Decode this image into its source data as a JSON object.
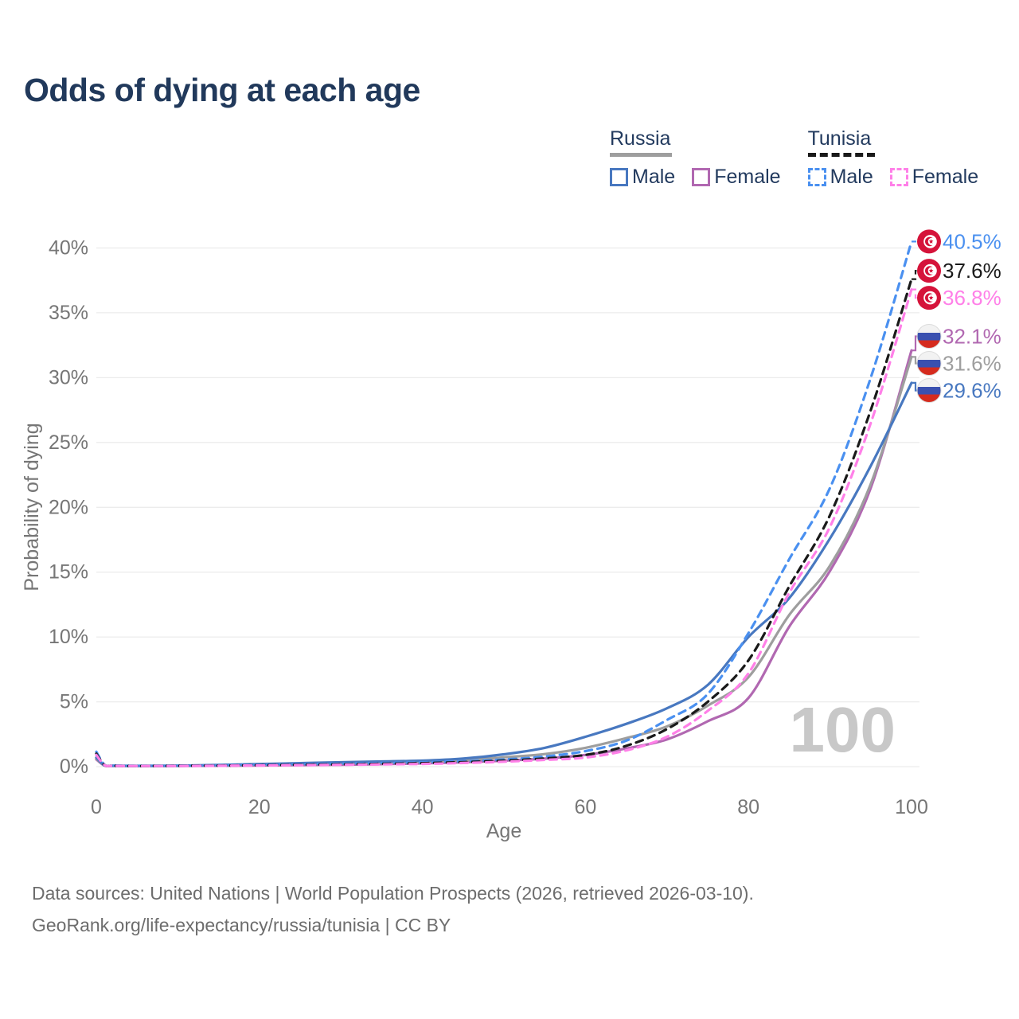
{
  "title": "Odds of dying at each age",
  "legend": {
    "groups": [
      {
        "country": "Russia",
        "style": "solid",
        "rule_color": "#9e9e9e",
        "items": [
          {
            "label": "Male",
            "color": "#4878c0"
          },
          {
            "label": "Female",
            "color": "#b168b1"
          }
        ]
      },
      {
        "country": "Tunisia",
        "style": "dashed",
        "rule_color": "#1a1a1a",
        "items": [
          {
            "label": "Male",
            "color": "#4a90f0"
          },
          {
            "label": "Female",
            "color": "#ff80e8"
          }
        ]
      }
    ]
  },
  "watermark_age": "100",
  "flags": {
    "tunisia_red": "#d5133a",
    "russia_white": "#f2f2f2",
    "russia_blue": "#3a50b0",
    "russia_red": "#d52b1e"
  },
  "footer": {
    "line1": "Data sources: United Nations | World Population Prospects (2026, retrieved 2026-03-10).",
    "line2": "GeoRank.org/life-expectancy/russia/tunisia | CC BY"
  },
  "chart_data": {
    "type": "line",
    "title": "Odds of dying at each age",
    "xlabel": "Age",
    "ylabel": "Probability of dying",
    "xlim": [
      0,
      100
    ],
    "ylim": [
      0,
      40
    ],
    "x_ticks": [
      0,
      20,
      40,
      60,
      80,
      100
    ],
    "y_ticks": [
      0,
      5,
      10,
      15,
      20,
      25,
      30,
      35,
      40
    ],
    "y_tick_suffix": "%",
    "grid": "horizontal",
    "legend_position": "top-right",
    "x": [
      0,
      1,
      2,
      5,
      10,
      15,
      20,
      25,
      30,
      35,
      40,
      45,
      50,
      55,
      60,
      65,
      70,
      75,
      80,
      85,
      90,
      95,
      100
    ],
    "series": [
      {
        "name": "Tunisia Male",
        "country": "Tunisia",
        "sex": "male",
        "color": "#4a90f0",
        "dash": "dashed",
        "flag": "tn",
        "end_label": "40.5%",
        "values": [
          1.15,
          0.15,
          0.08,
          0.06,
          0.07,
          0.1,
          0.14,
          0.18,
          0.23,
          0.28,
          0.33,
          0.42,
          0.55,
          0.78,
          1.2,
          2.0,
          3.6,
          5.6,
          10.3,
          16.0,
          21.5,
          30.0,
          40.5
        ]
      },
      {
        "name": "Tunisia Average",
        "country": "Tunisia",
        "sex": "both",
        "color": "#1a1a1a",
        "dash": "dashed",
        "flag": "tn",
        "end_label": "37.6%",
        "values": [
          1.0,
          0.13,
          0.07,
          0.05,
          0.06,
          0.08,
          0.11,
          0.14,
          0.18,
          0.22,
          0.27,
          0.35,
          0.46,
          0.63,
          0.9,
          1.6,
          2.9,
          5.0,
          8.2,
          13.9,
          19.4,
          27.5,
          37.6
        ]
      },
      {
        "name": "Tunisia Female",
        "country": "Tunisia",
        "sex": "female",
        "color": "#ff80e8",
        "dash": "dashed",
        "flag": "tn",
        "end_label": "36.8%",
        "values": [
          0.9,
          0.12,
          0.06,
          0.05,
          0.05,
          0.07,
          0.09,
          0.11,
          0.14,
          0.17,
          0.21,
          0.28,
          0.38,
          0.52,
          0.7,
          1.25,
          2.3,
          4.3,
          7.2,
          13.4,
          18.5,
          26.5,
          36.8
        ]
      },
      {
        "name": "Russia Female",
        "country": "Russia",
        "sex": "female",
        "color": "#b168b1",
        "dash": "solid",
        "flag": "ru",
        "end_label": "32.1%",
        "values": [
          0.55,
          0.08,
          0.05,
          0.04,
          0.05,
          0.07,
          0.09,
          0.12,
          0.15,
          0.19,
          0.25,
          0.34,
          0.46,
          0.62,
          0.9,
          1.4,
          2.1,
          3.5,
          5.3,
          10.8,
          15.1,
          21.5,
          32.1
        ]
      },
      {
        "name": "Russia Average",
        "country": "Russia",
        "sex": "both",
        "color": "#9e9e9e",
        "dash": "solid",
        "flag": "ru",
        "end_label": "31.6%",
        "values": [
          0.62,
          0.09,
          0.06,
          0.05,
          0.06,
          0.1,
          0.15,
          0.2,
          0.25,
          0.3,
          0.36,
          0.49,
          0.72,
          0.97,
          1.45,
          2.2,
          3.1,
          4.7,
          6.9,
          11.7,
          15.5,
          21.8,
          31.6
        ]
      },
      {
        "name": "Russia Male",
        "country": "Russia",
        "sex": "male",
        "color": "#4878c0",
        "dash": "solid",
        "flag": "ru",
        "end_label": "29.6%",
        "values": [
          0.7,
          0.1,
          0.07,
          0.06,
          0.08,
          0.13,
          0.2,
          0.27,
          0.34,
          0.4,
          0.46,
          0.62,
          0.95,
          1.45,
          2.3,
          3.3,
          4.5,
          6.3,
          10.0,
          13.0,
          17.6,
          23.2,
          29.6
        ]
      }
    ]
  }
}
